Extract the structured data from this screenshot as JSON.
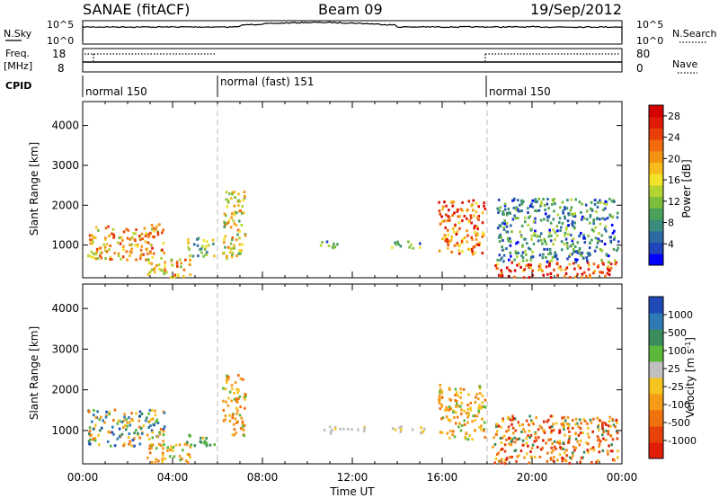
{
  "header": {
    "station": "SANAE (fitACF)",
    "beam": "Beam 09",
    "date": "19/Sep/2012"
  },
  "panels": {
    "nsky_label": "N.Sky",
    "nsky_ticks": [
      "10^5",
      "10^0"
    ],
    "nsearch_label": "N.Search",
    "nsearch_ticks": [
      "10^5",
      "10^0"
    ],
    "freq_label": "Freq.",
    "freq_unit": "[MHz]",
    "freq_ticks": [
      "18",
      "8"
    ],
    "nave_label": "Nave",
    "nave_ticks": [
      "80",
      "0"
    ],
    "cpid_label": "CPID",
    "cpid_modes": [
      {
        "label": "normal 150",
        "start_hour": 0,
        "end_hour": 6
      },
      {
        "label": "normal (fast) 151",
        "start_hour": 6,
        "end_hour": 18
      },
      {
        "label": "normal 150",
        "start_hour": 18,
        "end_hour": 24
      }
    ]
  },
  "chart_data": [
    {
      "type": "heatmap",
      "title": "Power",
      "ylabel": "Slant Range [km]",
      "xlabel": "Time UT",
      "x_ticks": [
        "00:00",
        "04:00",
        "08:00",
        "12:00",
        "16:00",
        "20:00",
        "00:00"
      ],
      "xlim_hours": [
        0,
        24
      ],
      "y_ticks": [
        1000,
        2000,
        3000,
        4000
      ],
      "ylim_km": [
        180,
        4600
      ],
      "colorbar": {
        "label": "Power [dB]",
        "ticks": [
          "4",
          "8",
          "12",
          "16",
          "20",
          "24",
          "28"
        ],
        "range": [
          0,
          30
        ],
        "colors": [
          "#0000ff",
          "#2244bb",
          "#2c6aa4",
          "#3a8c7c",
          "#4aa25a",
          "#7cbe3c",
          "#b4d434",
          "#f2e229",
          "#f5bc1c",
          "#f39313",
          "#f26b0c",
          "#e84008",
          "#df1a06",
          "#d50000"
        ]
      },
      "clusters": [
        {
          "t": [
            0.2,
            3.6
          ],
          "r": [
            650,
            1550
          ],
          "level": 19
        },
        {
          "t": [
            2.8,
            4.8
          ],
          "r": [
            220,
            700
          ],
          "level": 18
        },
        {
          "t": [
            4.6,
            5.9
          ],
          "r": [
            750,
            1250
          ],
          "level": 12
        },
        {
          "t": [
            6.2,
            7.2
          ],
          "r": [
            900,
            2400
          ],
          "level": 16
        },
        {
          "t": [
            6.2,
            7.0
          ],
          "r": [
            650,
            1050
          ],
          "level": 14
        },
        {
          "t": [
            10.2,
            11.3
          ],
          "r": [
            950,
            1120
          ],
          "level": 9
        },
        {
          "t": [
            13.7,
            15.2
          ],
          "r": [
            950,
            1130
          ],
          "level": 10
        },
        {
          "t": [
            15.8,
            17.9
          ],
          "r": [
            800,
            2150
          ],
          "level": 22
        },
        {
          "t": [
            18.2,
            23.8
          ],
          "r": [
            220,
            600
          ],
          "level": 24
        },
        {
          "t": [
            18.4,
            23.8
          ],
          "r": [
            600,
            2200
          ],
          "level": 8
        }
      ]
    },
    {
      "type": "heatmap",
      "title": "Velocity",
      "ylabel": "Slant Range [km]",
      "xlabel": "Time UT",
      "x_ticks": [
        "00:00",
        "04:00",
        "08:00",
        "12:00",
        "16:00",
        "20:00",
        "00:00"
      ],
      "xlim_hours": [
        0,
        24
      ],
      "y_ticks": [
        1000,
        2000,
        3000,
        4000
      ],
      "ylim_km": [
        180,
        4600
      ],
      "colorbar": {
        "label": "Velocity [m s^-1]",
        "ticks": [
          "1000",
          "500",
          "100",
          "25",
          "-25",
          "-100",
          "-500",
          "-1000"
        ],
        "colors": [
          "#1f4ab8",
          "#2f7ab5",
          "#3a8c5c",
          "#5cb83a",
          "#bfbfbf",
          "#f5c31e",
          "#f59b18",
          "#f0720f",
          "#e8420a",
          "#e01e07"
        ]
      },
      "clusters": [
        {
          "t": [
            0.2,
            3.6
          ],
          "r": [
            650,
            1550
          ],
          "class": "mixed-green-orange"
        },
        {
          "t": [
            2.8,
            4.8
          ],
          "r": [
            220,
            700
          ],
          "class": "orange"
        },
        {
          "t": [
            4.6,
            5.9
          ],
          "r": [
            650,
            950
          ],
          "class": "green"
        },
        {
          "t": [
            6.2,
            7.2
          ],
          "r": [
            900,
            2400
          ],
          "class": "orange"
        },
        {
          "t": [
            10.5,
            12.5
          ],
          "r": [
            950,
            1120
          ],
          "class": "grey"
        },
        {
          "t": [
            13.7,
            15.2
          ],
          "r": [
            950,
            1130
          ],
          "class": "grey"
        },
        {
          "t": [
            15.8,
            17.9
          ],
          "r": [
            800,
            2150
          ],
          "class": "orange"
        },
        {
          "t": [
            18.2,
            23.8
          ],
          "r": [
            220,
            1400
          ],
          "class": "orange-red"
        }
      ]
    }
  ]
}
